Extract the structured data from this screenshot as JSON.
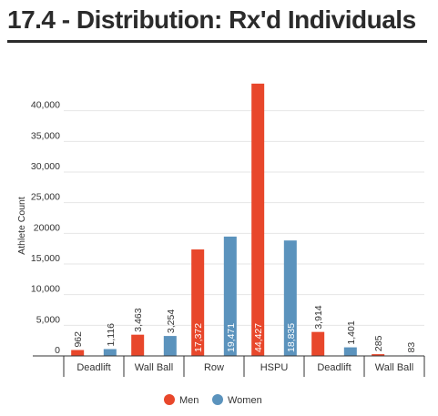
{
  "chart_data": {
    "type": "bar",
    "title": "17.4 - Distribution: Rx'd Individuals",
    "ylabel": "Athlete Count",
    "xlabel": "",
    "categories": [
      "Deadlift",
      "Wall Ball",
      "Row",
      "HSPU",
      "Deadlift",
      "Wall Ball"
    ],
    "series": [
      {
        "name": "Men",
        "color": "#e8472b",
        "values": [
          962,
          3463,
          17372,
          44427,
          3914,
          285
        ]
      },
      {
        "name": "Women",
        "color": "#5b93bd",
        "values": [
          1116,
          3254,
          19471,
          18835,
          1401,
          83
        ]
      }
    ],
    "data_labels": {
      "Men": [
        "962",
        "3,463",
        "17,372",
        "44,427",
        "3,914",
        "285"
      ],
      "Women": [
        "1,116",
        "3,254",
        "19,471",
        "18,835",
        "1,401",
        "83"
      ]
    },
    "y_ticks": [
      {
        "value": 0,
        "label": "0"
      },
      {
        "value": 5000,
        "label": "5,000"
      },
      {
        "value": 10000,
        "label": "10,000"
      },
      {
        "value": 15000,
        "label": "15,000"
      },
      {
        "value": 20000,
        "label": "20000"
      },
      {
        "value": 25000,
        "label": "25,000"
      },
      {
        "value": 30000,
        "label": "30,000"
      },
      {
        "value": 35000,
        "label": "35,000"
      },
      {
        "value": 40000,
        "label": "40,000"
      }
    ],
    "ylim": [
      0,
      45000
    ],
    "grid": true,
    "legend": "bottom-center"
  }
}
